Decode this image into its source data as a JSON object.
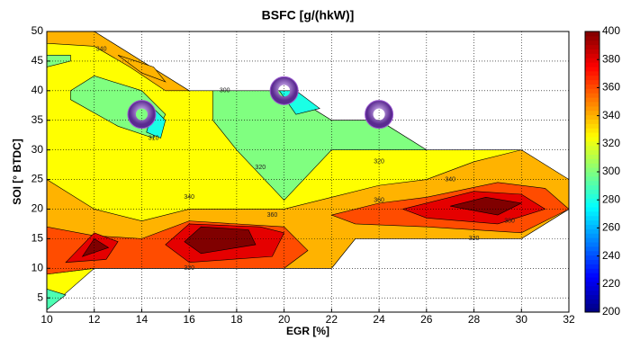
{
  "chart_data": {
    "type": "contour",
    "title": "BSFC [g/(hkW)]",
    "x_label": "EGR [%]",
    "y_label": "SOI [° BTDC]",
    "xlim": [
      10,
      32
    ],
    "xticks": [
      10,
      12,
      14,
      16,
      18,
      20,
      22,
      24,
      26,
      28,
      30,
      32
    ],
    "ylim": [
      2.6,
      50
    ],
    "yticks": [
      5,
      10,
      15,
      20,
      25,
      30,
      35,
      40,
      45,
      50
    ],
    "grid": true,
    "colormap": "jet",
    "clim": [
      200,
      400
    ],
    "cticks": [
      200,
      220,
      240,
      260,
      280,
      300,
      320,
      340,
      360,
      380,
      400
    ],
    "regions": [
      {
        "level": 325,
        "points": [
          [
            10,
            50
          ],
          [
            12,
            50
          ],
          [
            14,
            45
          ],
          [
            16,
            40
          ],
          [
            20,
            40
          ],
          [
            22,
            35
          ],
          [
            24,
            35
          ],
          [
            26,
            30
          ],
          [
            30,
            30
          ],
          [
            32,
            25
          ],
          [
            32,
            20
          ],
          [
            30,
            15
          ],
          [
            23,
            15
          ],
          [
            22,
            10
          ],
          [
            12,
            10
          ],
          [
            10,
            3
          ]
        ]
      },
      {
        "level": 340,
        "points": [
          [
            10,
            50
          ],
          [
            12,
            50
          ],
          [
            14,
            45
          ],
          [
            16,
            40
          ],
          [
            15,
            40
          ],
          [
            13.5,
            44
          ],
          [
            12,
            47.5
          ],
          [
            10,
            48
          ]
        ]
      },
      {
        "level": 340,
        "points": [
          [
            13,
            46
          ],
          [
            14,
            43
          ],
          [
            15,
            41.5
          ],
          [
            14.5,
            44
          ]
        ]
      },
      {
        "level": 340,
        "points": [
          [
            10,
            25
          ],
          [
            12,
            20
          ],
          [
            14,
            18
          ],
          [
            16,
            20
          ],
          [
            20,
            20
          ],
          [
            22,
            22
          ],
          [
            24,
            24
          ],
          [
            26,
            25
          ],
          [
            28,
            28
          ],
          [
            30,
            30
          ],
          [
            32,
            25
          ],
          [
            32,
            20
          ],
          [
            30,
            15
          ],
          [
            23,
            15
          ],
          [
            22,
            10
          ],
          [
            12,
            10
          ],
          [
            10,
            9
          ]
        ]
      },
      {
        "level": 360,
        "points": [
          [
            10,
            17
          ],
          [
            12,
            15.5
          ],
          [
            14,
            15
          ],
          [
            16,
            18
          ],
          [
            20,
            17
          ],
          [
            21,
            13
          ],
          [
            20,
            10
          ],
          [
            12,
            10
          ],
          [
            10,
            9
          ]
        ]
      },
      {
        "level": 360,
        "points": [
          [
            22,
            19
          ],
          [
            24,
            21
          ],
          [
            26,
            22
          ],
          [
            29,
            24.5
          ],
          [
            31,
            23.5
          ],
          [
            32,
            20
          ],
          [
            30,
            16
          ],
          [
            26,
            17
          ],
          [
            23,
            17.5
          ]
        ]
      },
      {
        "level": 380,
        "points": [
          [
            10.8,
            11
          ],
          [
            12,
            16
          ],
          [
            13,
            14.5
          ],
          [
            12.5,
            11.5
          ]
        ]
      },
      {
        "level": 380,
        "points": [
          [
            15,
            14
          ],
          [
            16,
            17.5
          ],
          [
            19,
            17
          ],
          [
            20,
            16
          ],
          [
            19.5,
            12
          ],
          [
            16,
            11
          ]
        ]
      },
      {
        "level": 380,
        "points": [
          [
            25,
            20
          ],
          [
            28,
            23
          ],
          [
            30,
            22.5
          ],
          [
            31,
            20
          ],
          [
            29,
            17.5
          ],
          [
            26,
            18.5
          ]
        ]
      },
      {
        "level": 400,
        "points": [
          [
            11.5,
            12
          ],
          [
            12,
            15
          ],
          [
            12.6,
            13.5
          ]
        ]
      },
      {
        "level": 400,
        "points": [
          [
            15.8,
            14.5
          ],
          [
            16.5,
            17
          ],
          [
            18.5,
            16.5
          ],
          [
            18.8,
            14
          ],
          [
            16.5,
            12.5
          ]
        ]
      },
      {
        "level": 400,
        "points": [
          [
            27,
            20.5
          ],
          [
            28.5,
            22
          ],
          [
            30,
            21
          ],
          [
            29,
            19
          ]
        ]
      },
      {
        "level": 300,
        "points": [
          [
            11,
            40
          ],
          [
            12,
            42.5
          ],
          [
            14,
            40
          ],
          [
            15,
            36
          ],
          [
            14.5,
            32
          ],
          [
            13,
            34
          ],
          [
            11,
            38.5
          ]
        ]
      },
      {
        "level": 300,
        "points": [
          [
            17,
            40
          ],
          [
            20,
            40
          ],
          [
            22,
            35
          ],
          [
            24,
            35
          ],
          [
            26,
            30
          ],
          [
            22,
            30
          ],
          [
            20,
            21.5
          ],
          [
            18,
            30
          ],
          [
            17,
            35
          ]
        ]
      },
      {
        "level": 300,
        "points": [
          [
            10,
            44
          ],
          [
            11,
            45
          ],
          [
            11,
            46
          ],
          [
            10,
            46
          ]
        ]
      },
      {
        "level": 280,
        "points": [
          [
            14.2,
            33
          ],
          [
            14.5,
            37
          ],
          [
            15,
            35
          ],
          [
            14.8,
            32
          ]
        ]
      },
      {
        "level": 280,
        "points": [
          [
            19.8,
            40
          ],
          [
            20.5,
            40
          ],
          [
            21.5,
            37
          ],
          [
            20.5,
            36
          ]
        ]
      },
      {
        "level": 290,
        "points": [
          [
            10,
            3
          ],
          [
            10.8,
            5.5
          ],
          [
            10,
            6.5
          ]
        ]
      }
    ],
    "contour_labels": [
      {
        "x": 12.3,
        "y": 47,
        "value": 340
      },
      {
        "x": 17.5,
        "y": 40,
        "value": 300
      },
      {
        "x": 14.5,
        "y": 32,
        "value": 310
      },
      {
        "x": 19,
        "y": 27,
        "value": 320
      },
      {
        "x": 24,
        "y": 28,
        "value": 320
      },
      {
        "x": 16,
        "y": 22,
        "value": 340
      },
      {
        "x": 24,
        "y": 21.5,
        "value": 360
      },
      {
        "x": 27,
        "y": 25,
        "value": 340
      },
      {
        "x": 16,
        "y": 10,
        "value": 320
      },
      {
        "x": 28,
        "y": 15,
        "value": 320
      },
      {
        "x": 19.5,
        "y": 19,
        "value": 360
      },
      {
        "x": 29.5,
        "y": 18,
        "value": 380
      }
    ],
    "markers": {
      "color": "#9b59d0",
      "x": [
        14,
        20,
        24
      ],
      "y": [
        36,
        40,
        36
      ]
    }
  }
}
